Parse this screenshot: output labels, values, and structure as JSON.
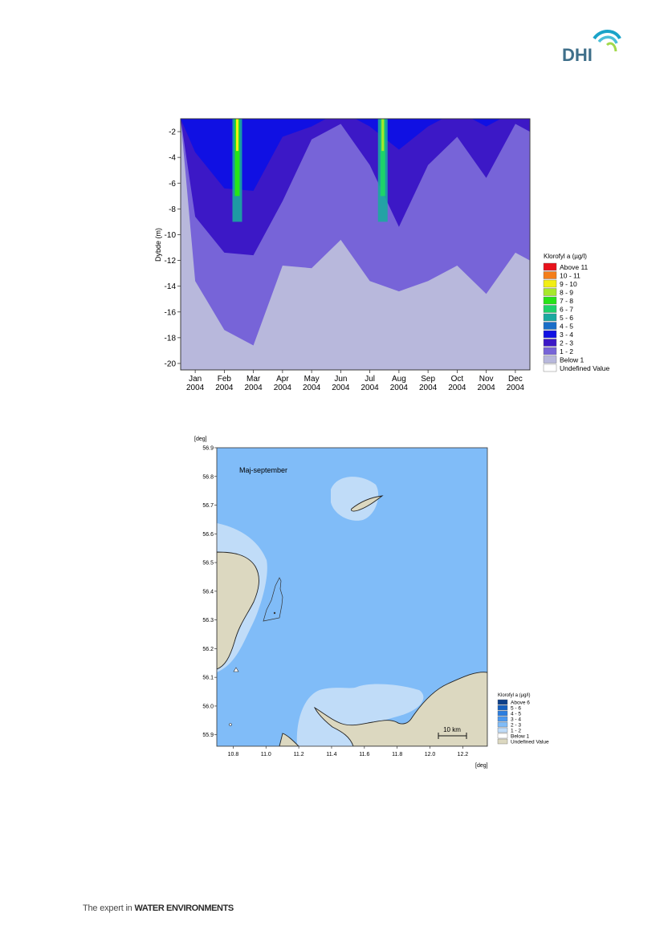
{
  "logo": {
    "text": "DHI"
  },
  "footer": {
    "tagline_prefix": "The expert in",
    "tagline_emphasis": "WATER ENVIRONMENTS"
  },
  "chart_data": [
    {
      "type": "heatmap",
      "title": "",
      "xlabel": "",
      "ylabel": "Dybde (m)",
      "ylim": [
        -20.5,
        -1
      ],
      "yticks": [
        -2,
        -4,
        -6,
        -8,
        -10,
        -12,
        -14,
        -16,
        -18,
        -20
      ],
      "x_categories": [
        "Jan\n2004",
        "Feb\n2004",
        "Mar\n2004",
        "Apr\n2004",
        "May\n2004",
        "Jun\n2004",
        "Jul\n2004",
        "Aug\n2004",
        "Sep\n2004",
        "Oct\n2004",
        "Nov\n2004",
        "Dec\n2004"
      ],
      "legend": {
        "title": "Klorofyl a (µg/l)",
        "placement": "right",
        "entries": [
          {
            "label": "Above 11",
            "color": "#e8121b"
          },
          {
            "label": "10 - 11",
            "color": "#f47e1a"
          },
          {
            "label": "9 - 10",
            "color": "#f2ee14"
          },
          {
            "label": "8 - 9",
            "color": "#a7e82c"
          },
          {
            "label": "7 - 8",
            "color": "#27e417"
          },
          {
            "label": "6 - 7",
            "color": "#1ed26a"
          },
          {
            "label": "5 - 6",
            "color": "#1ba9a0"
          },
          {
            "label": "4 - 5",
            "color": "#1a6ec8"
          },
          {
            "label": "3 - 4",
            "color": "#1010e3"
          },
          {
            "label": "2 - 3",
            "color": "#3c18c6"
          },
          {
            "label": "1 - 2",
            "color": "#7764d8"
          },
          {
            "label": "Below 1",
            "color": "#b8b8dc"
          },
          {
            "label": "Undefined Value",
            "color": "#ffffff"
          }
        ]
      },
      "depth_profile": {
        "months": [
          "Jan",
          "Feb",
          "Mar",
          "Apr",
          "May",
          "Jun",
          "Jul",
          "Aug",
          "Sep",
          "Oct",
          "Nov",
          "Dec"
        ],
        "layer_1_2_bottom": [
          -13,
          -18,
          -18,
          -13,
          -12,
          -11,
          -13,
          -15,
          -13,
          -13,
          -14,
          -12
        ],
        "layer_2_3_bottom": [
          -8,
          -12,
          -11,
          -8,
          -2,
          -2,
          -4,
          -10,
          -4,
          -3,
          -5,
          -2
        ],
        "layer_3_4_bottom": [
          -3,
          -7,
          -6,
          -3,
          -1,
          -1,
          -1,
          -4,
          -1,
          -1,
          -1,
          -1
        ]
      }
    },
    {
      "type": "heatmap",
      "title": "Maj-september",
      "xlabel": "[deg]",
      "ylabel": "[deg]",
      "xlim": [
        10.7,
        12.35
      ],
      "ylim": [
        55.86,
        56.9
      ],
      "xticks": [
        10.8,
        11.0,
        11.2,
        11.4,
        11.6,
        11.8,
        12.0,
        12.2
      ],
      "yticks": [
        55.9,
        56.0,
        56.1,
        56.2,
        56.3,
        56.4,
        56.5,
        56.6,
        56.7,
        56.8,
        56.9
      ],
      "scale_bar": "10 km",
      "legend": {
        "title": "Klorofyl a (µg/l)",
        "placement": "right",
        "entries": [
          {
            "label": "Above 6",
            "color": "#0d3f8a"
          },
          {
            "label": "5 - 6",
            "color": "#1560c0"
          },
          {
            "label": "4 - 5",
            "color": "#2b7ee0"
          },
          {
            "label": "3 - 4",
            "color": "#4a98f0"
          },
          {
            "label": "2 - 3",
            "color": "#80bcf8"
          },
          {
            "label": "1 - 2",
            "color": "#c0dcf8"
          },
          {
            "label": "Below 1",
            "color": "#ffffff"
          },
          {
            "label": "Undefined Value",
            "color": "#dcd8c0"
          }
        ]
      }
    }
  ]
}
